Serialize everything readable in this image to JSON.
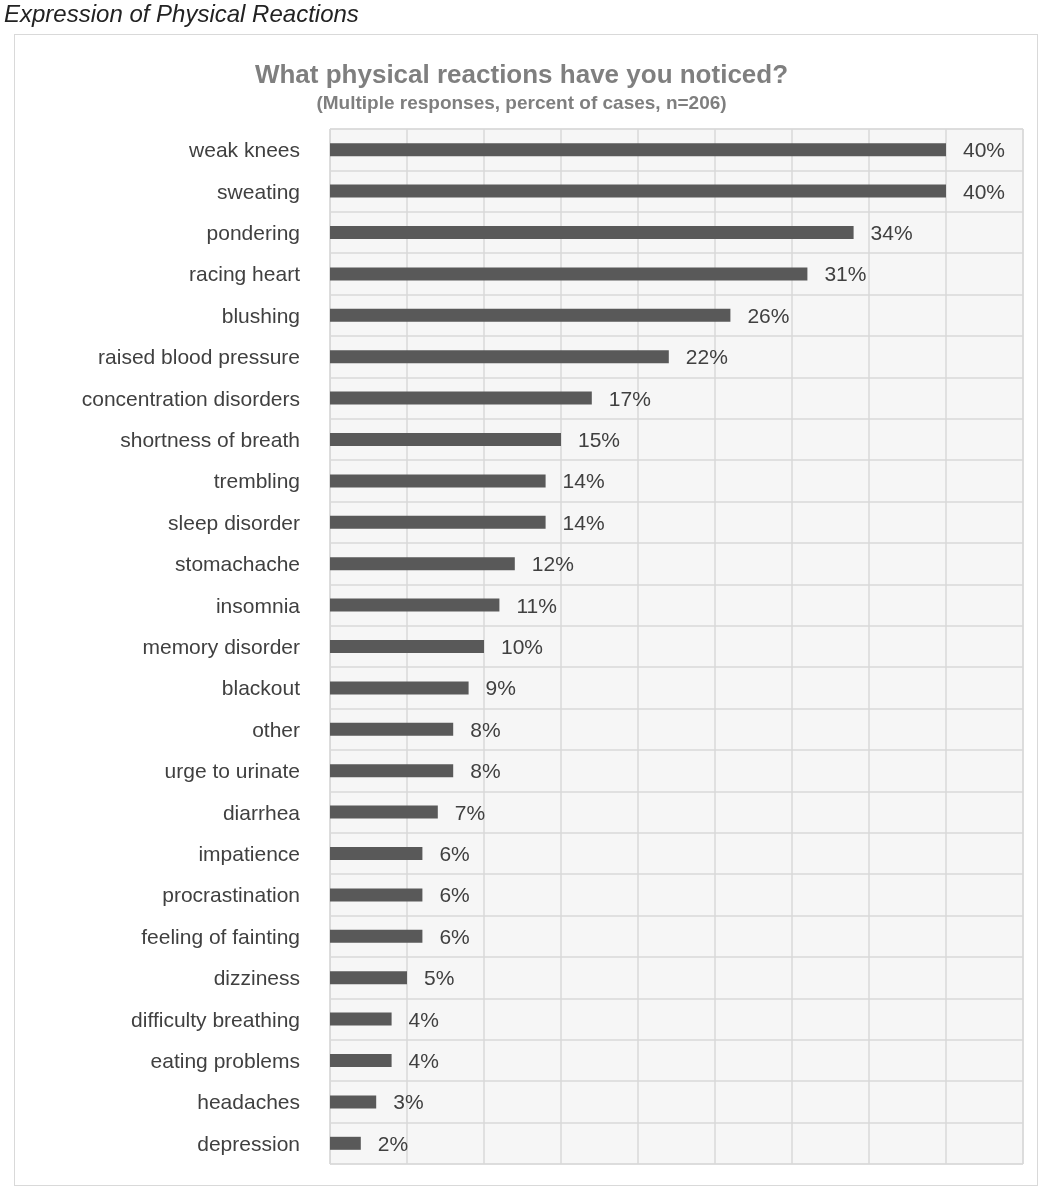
{
  "chart_data": {
    "type": "bar",
    "orientation": "horizontal",
    "title": "What physical reactions have you noticed?",
    "subtitle": "(Multiple responses, percent of cases, n=206)",
    "annotations": [
      "Expression of Physical Reactions"
    ],
    "categories": [
      "weak knees",
      "sweating",
      "pondering",
      "racing heart",
      "blushing",
      "raised blood pressure",
      "concentration disorders",
      "shortness of breath",
      "trembling",
      "sleep disorder",
      "stomachache",
      "insomnia",
      "memory disorder",
      "blackout",
      "other",
      "urge to urinate",
      "diarrhea",
      "impatience",
      "procrastination",
      "feeling of fainting",
      "dizziness",
      "difficulty breathing",
      "eating problems",
      "headaches",
      "depression"
    ],
    "values": [
      40,
      40,
      34,
      31,
      26,
      22,
      17,
      15,
      14,
      14,
      12,
      11,
      10,
      9,
      8,
      8,
      7,
      6,
      6,
      6,
      5,
      4,
      4,
      3,
      2
    ],
    "value_labels": [
      "40%",
      "40%",
      "34%",
      "31%",
      "26%",
      "22%",
      "17%",
      "15%",
      "14%",
      "14%",
      "12%",
      "11%",
      "10%",
      "9%",
      "8%",
      "8%",
      "7%",
      "6%",
      "6%",
      "6%",
      "5%",
      "4%",
      "4%",
      "3%",
      "2%"
    ],
    "color": "#595959",
    "xlim": [
      0,
      45
    ],
    "xticks": [
      {
        "value": 0,
        "label": null
      },
      {
        "value": 5,
        "label": null
      },
      {
        "value": 10,
        "label": null
      },
      {
        "value": 15,
        "label": null
      },
      {
        "value": 20,
        "label": null
      },
      {
        "value": 25,
        "label": null
      },
      {
        "value": 30,
        "label": null
      },
      {
        "value": 35,
        "label": null
      },
      {
        "value": 40,
        "label": null
      },
      {
        "value": 45,
        "label": null
      }
    ],
    "tick_labels": "y",
    "grid": true
  }
}
